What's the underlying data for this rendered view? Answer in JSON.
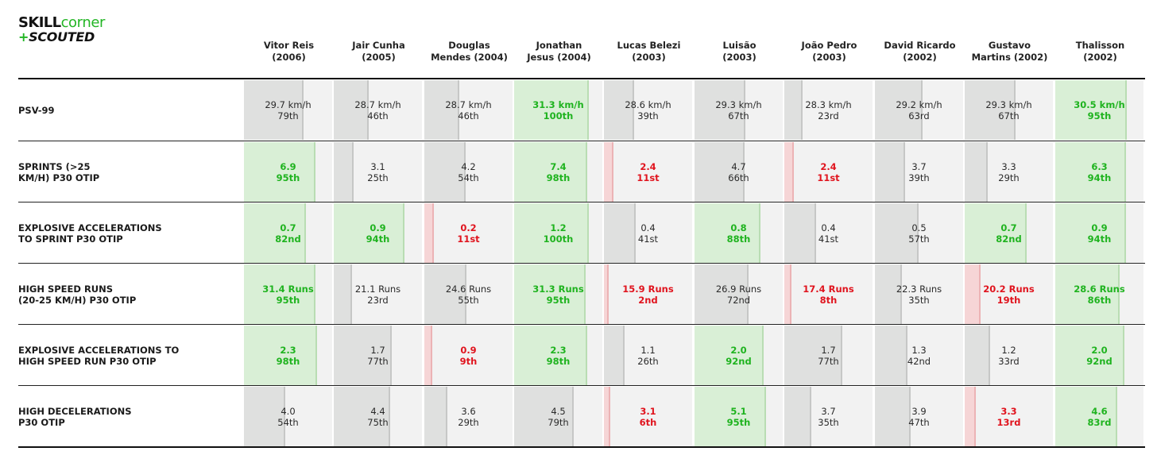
{
  "logo": {
    "part1": "SKILL",
    "part2": "corner",
    "plus": "+",
    "part3": "SCOUTED"
  },
  "chart_data": {
    "type": "table",
    "players": [
      {
        "name": "Vitor Reis",
        "year": "(2006)"
      },
      {
        "name": "Jair Cunha",
        "year": "(2005)"
      },
      {
        "name": "Douglas",
        "year": "Mendes (2004)"
      },
      {
        "name": "Jonathan",
        "year": "Jesus (2004)"
      },
      {
        "name": "Lucas Belezi",
        "year": "(2003)"
      },
      {
        "name": "Luisão",
        "year": "(2003)"
      },
      {
        "name": "João Pedro",
        "year": "(2003)"
      },
      {
        "name": "David Ricardo",
        "year": "(2002)"
      },
      {
        "name": "Gustavo",
        "year": "Martins (2002)"
      },
      {
        "name": "Thalisson",
        "year": "(2002)"
      }
    ],
    "metrics": [
      {
        "label": "PSV-99",
        "cells": [
          {
            "value": "29.7 km/h",
            "rank": "79th",
            "percentile": 79,
            "status": "neutral"
          },
          {
            "value": "28.7 km/h",
            "rank": "46th",
            "percentile": 46,
            "status": "neutral"
          },
          {
            "value": "28.7 km/h",
            "rank": "46th",
            "percentile": 46,
            "status": "neutral"
          },
          {
            "value": "31.3 km/h",
            "rank": "100th",
            "percentile": 100,
            "status": "positive"
          },
          {
            "value": "28.6 km/h",
            "rank": "39th",
            "percentile": 39,
            "status": "neutral"
          },
          {
            "value": "29.3 km/h",
            "rank": "67th",
            "percentile": 67,
            "status": "neutral"
          },
          {
            "value": "28.3 km/h",
            "rank": "23rd",
            "percentile": 23,
            "status": "neutral"
          },
          {
            "value": "29.2 km/h",
            "rank": "63rd",
            "percentile": 63,
            "status": "neutral"
          },
          {
            "value": "29.3 km/h",
            "rank": "67th",
            "percentile": 67,
            "status": "neutral"
          },
          {
            "value": "30.5 km/h",
            "rank": "95th",
            "percentile": 95,
            "status": "positive"
          }
        ]
      },
      {
        "label": "SPRINTS (>25\nKM/H) P30 OTIP",
        "cells": [
          {
            "value": "6.9",
            "rank": "95th",
            "percentile": 95,
            "status": "positive"
          },
          {
            "value": "3.1",
            "rank": "25th",
            "percentile": 25,
            "status": "neutral"
          },
          {
            "value": "4.2",
            "rank": "54th",
            "percentile": 54,
            "status": "neutral"
          },
          {
            "value": "7.4",
            "rank": "98th",
            "percentile": 98,
            "status": "positive"
          },
          {
            "value": "2.4",
            "rank": "11st",
            "percentile": 11,
            "status": "negative"
          },
          {
            "value": "4.7",
            "rank": "66th",
            "percentile": 66,
            "status": "neutral"
          },
          {
            "value": "2.4",
            "rank": "11st",
            "percentile": 11,
            "status": "negative"
          },
          {
            "value": "3.7",
            "rank": "39th",
            "percentile": 39,
            "status": "neutral"
          },
          {
            "value": "3.3",
            "rank": "29th",
            "percentile": 29,
            "status": "neutral"
          },
          {
            "value": "6.3",
            "rank": "94th",
            "percentile": 94,
            "status": "positive"
          }
        ]
      },
      {
        "label": "EXPLOSIVE ACCELERATIONS\nTO SPRINT P30 OTIP",
        "cells": [
          {
            "value": "0.7",
            "rank": "82nd",
            "percentile": 82,
            "status": "positive"
          },
          {
            "value": "0.9",
            "rank": "94th",
            "percentile": 94,
            "status": "positive"
          },
          {
            "value": "0.2",
            "rank": "11st",
            "percentile": 11,
            "status": "negative"
          },
          {
            "value": "1.2",
            "rank": "100th",
            "percentile": 100,
            "status": "positive"
          },
          {
            "value": "0.4",
            "rank": "41st",
            "percentile": 41,
            "status": "neutral"
          },
          {
            "value": "0.8",
            "rank": "88th",
            "percentile": 88,
            "status": "positive"
          },
          {
            "value": "0.4",
            "rank": "41st",
            "percentile": 41,
            "status": "neutral"
          },
          {
            "value": "0.5",
            "rank": "57th",
            "percentile": 57,
            "status": "neutral"
          },
          {
            "value": "0.7",
            "rank": "82nd",
            "percentile": 82,
            "status": "positive"
          },
          {
            "value": "0.9",
            "rank": "94th",
            "percentile": 94,
            "status": "positive"
          }
        ]
      },
      {
        "label": "HIGH SPEED RUNS\n(20-25 KM/H) P30 OTIP",
        "cells": [
          {
            "value": "31.4 Runs",
            "rank": "95th",
            "percentile": 95,
            "status": "positive"
          },
          {
            "value": "21.1 Runs",
            "rank": "23rd",
            "percentile": 23,
            "status": "neutral"
          },
          {
            "value": "24.6 Runs",
            "rank": "55th",
            "percentile": 55,
            "status": "neutral"
          },
          {
            "value": "31.3 Runs",
            "rank": "95th",
            "percentile": 95,
            "status": "positive"
          },
          {
            "value": "15.9 Runs",
            "rank": "2nd",
            "percentile": 2,
            "status": "negative"
          },
          {
            "value": "26.9 Runs",
            "rank": "72nd",
            "percentile": 72,
            "status": "neutral"
          },
          {
            "value": "17.4 Runs",
            "rank": "8th",
            "percentile": 8,
            "status": "negative"
          },
          {
            "value": "22.3 Runs",
            "rank": "35th",
            "percentile": 35,
            "status": "neutral"
          },
          {
            "value": "20.2 Runs",
            "rank": "19th",
            "percentile": 19,
            "status": "negative"
          },
          {
            "value": "28.6 Runs",
            "rank": "86th",
            "percentile": 86,
            "status": "positive"
          }
        ]
      },
      {
        "label": "EXPLOSIVE ACCELERATIONS TO\nHIGH SPEED RUN P30 OTIP",
        "cells": [
          {
            "value": "2.3",
            "rank": "98th",
            "percentile": 98,
            "status": "positive"
          },
          {
            "value": "1.7",
            "rank": "77th",
            "percentile": 77,
            "status": "neutral"
          },
          {
            "value": "0.9",
            "rank": "9th",
            "percentile": 9,
            "status": "negative"
          },
          {
            "value": "2.3",
            "rank": "98th",
            "percentile": 98,
            "status": "positive"
          },
          {
            "value": "1.1",
            "rank": "26th",
            "percentile": 26,
            "status": "neutral"
          },
          {
            "value": "2.0",
            "rank": "92nd",
            "percentile": 92,
            "status": "positive"
          },
          {
            "value": "1.7",
            "rank": "77th",
            "percentile": 77,
            "status": "neutral"
          },
          {
            "value": "1.3",
            "rank": "42nd",
            "percentile": 42,
            "status": "neutral"
          },
          {
            "value": "1.2",
            "rank": "33rd",
            "percentile": 33,
            "status": "neutral"
          },
          {
            "value": "2.0",
            "rank": "92nd",
            "percentile": 92,
            "status": "positive"
          }
        ]
      },
      {
        "label": "HIGH DECELERATIONS\nP30 OTIP",
        "cells": [
          {
            "value": "4.0",
            "rank": "54th",
            "percentile": 54,
            "status": "neutral"
          },
          {
            "value": "4.4",
            "rank": "75th",
            "percentile": 75,
            "status": "neutral"
          },
          {
            "value": "3.6",
            "rank": "29th",
            "percentile": 29,
            "status": "neutral"
          },
          {
            "value": "4.5",
            "rank": "79th",
            "percentile": 79,
            "status": "neutral"
          },
          {
            "value": "3.1",
            "rank": "6th",
            "percentile": 6,
            "status": "negative"
          },
          {
            "value": "5.1",
            "rank": "95th",
            "percentile": 95,
            "status": "positive"
          },
          {
            "value": "3.7",
            "rank": "35th",
            "percentile": 35,
            "status": "neutral"
          },
          {
            "value": "3.9",
            "rank": "47th",
            "percentile": 47,
            "status": "neutral"
          },
          {
            "value": "3.3",
            "rank": "13rd",
            "percentile": 13,
            "status": "negative"
          },
          {
            "value": "4.6",
            "rank": "83rd",
            "percentile": 83,
            "status": "positive"
          }
        ]
      }
    ]
  },
  "colors": {
    "positive_text": "#1fb31f",
    "negative_text": "#e0141e",
    "neutral_text": "#2a2a2a",
    "positive_bar": "#d9efd6",
    "negative_bar": "#f6d5d6",
    "neutral_bar": "#dfe0df",
    "cell_bg": "#f2f2f2"
  }
}
